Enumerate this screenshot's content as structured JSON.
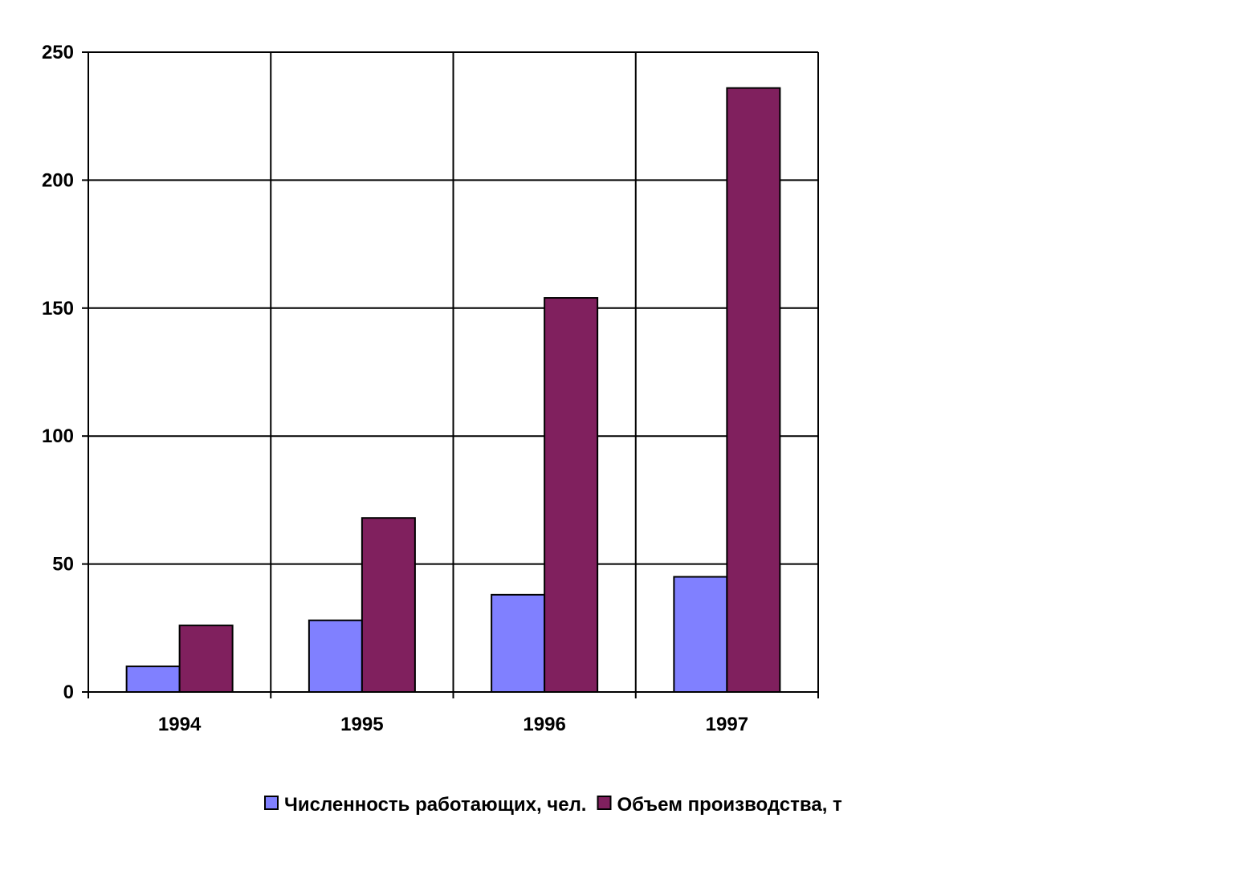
{
  "chart_data": {
    "type": "bar",
    "title": "",
    "xlabel": "",
    "ylabel": "",
    "categories": [
      "1994",
      "1995",
      "1996",
      "1997"
    ],
    "series": [
      {
        "name": "Численность работающих, чел.",
        "color": "#8080ff",
        "values": [
          10,
          28,
          38,
          45
        ]
      },
      {
        "name": "Объем производства, т",
        "color": "#80205e",
        "values": [
          26,
          68,
          154,
          236
        ]
      }
    ],
    "ylim": [
      0,
      250
    ],
    "yticks": [
      "0",
      "50",
      "100",
      "150",
      "200",
      "250"
    ],
    "grid": {
      "horizontal": true,
      "vertical": true
    },
    "legend": "bottom"
  }
}
